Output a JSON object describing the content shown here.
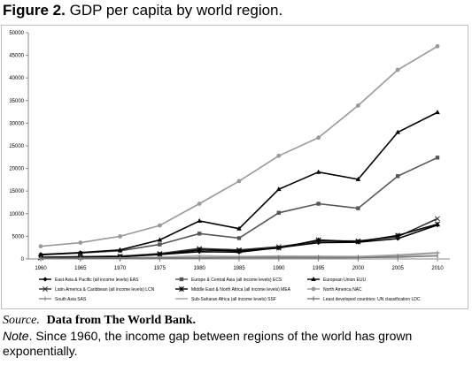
{
  "figure": {
    "label": "Figure 2.",
    "title": "GDP per capita by world region."
  },
  "source": {
    "label": "Source",
    "sep": ".",
    "text": "Data from The World Bank."
  },
  "note": {
    "label": "Note",
    "text": ". Since 1960, the income gap between regions of the world has grown exponentially."
  },
  "chart_data": {
    "type": "line",
    "x": [
      1960,
      1965,
      1970,
      1975,
      1980,
      1985,
      1990,
      1995,
      2000,
      2005,
      2010
    ],
    "ylim": [
      0,
      50000
    ],
    "yticks": [
      0,
      5000,
      10000,
      15000,
      20000,
      25000,
      30000,
      35000,
      40000,
      45000,
      50000
    ],
    "grid": false,
    "legend_position": "bottom",
    "series": [
      {
        "name": "East Asia & Pacific (all income levels) EAS",
        "color": "#000000",
        "marker": "diamond",
        "values": [
          400,
          500,
          600,
          1000,
          1600,
          1500,
          2500,
          3600,
          3700,
          4500,
          7500
        ]
      },
      {
        "name": "Europe & Central Asia (all income levels) ECS",
        "color": "#555555",
        "marker": "square",
        "values": [
          900,
          1300,
          1800,
          3200,
          5600,
          4600,
          10200,
          12200,
          11200,
          18300,
          22400
        ]
      },
      {
        "name": "European Union EUU",
        "color": "#000000",
        "marker": "triangle",
        "values": [
          1000,
          1400,
          2000,
          4200,
          8400,
          6700,
          15400,
          19200,
          17600,
          28000,
          32400
        ]
      },
      {
        "name": "Latin America & Caribbean (all income levels) LCN",
        "color": "#333333",
        "marker": "x",
        "values": [
          350,
          450,
          600,
          1200,
          2300,
          2000,
          2700,
          3900,
          4000,
          4900,
          8900
        ]
      },
      {
        "name": "Middle East & North Africa (all income levels) MEA",
        "color": "#000000",
        "marker": "star",
        "values": [
          250,
          350,
          450,
          1000,
          2000,
          1800,
          2400,
          4200,
          3800,
          5200,
          7700
        ]
      },
      {
        "name": "North America NAC",
        "color": "#999999",
        "marker": "circle",
        "values": [
          2800,
          3600,
          5000,
          7400,
          12200,
          17200,
          22800,
          26800,
          33900,
          41800,
          47000
        ]
      },
      {
        "name": "South Asia SAS",
        "color": "#888888",
        "marker": "plus",
        "values": [
          80,
          100,
          110,
          150,
          250,
          300,
          350,
          400,
          450,
          700,
          1300
        ]
      },
      {
        "name": "Sub-Saharan Africa (all income levels) SSF",
        "color": "#a6a6a6",
        "marker": "dash",
        "values": [
          120,
          150,
          220,
          400,
          700,
          550,
          650,
          600,
          550,
          900,
          1400
        ]
      },
      {
        "name": "Least developed countries: UN classification LDC",
        "color": "#777777",
        "marker": "bar",
        "values": [
          100,
          120,
          150,
          220,
          300,
          300,
          280,
          270,
          300,
          400,
          700
        ]
      }
    ]
  }
}
